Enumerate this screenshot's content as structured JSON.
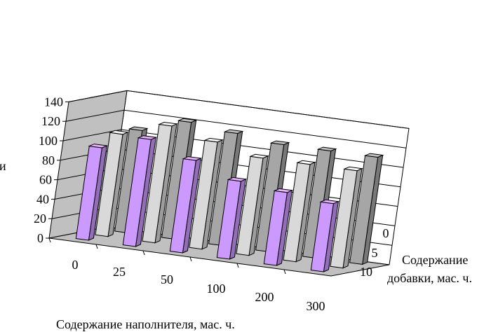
{
  "chart_data": {
    "type": "bar",
    "subtype": "3d-clustered-columns",
    "title": "",
    "xlabel": "Содержание наполнителя, мас. ч.",
    "zlabel_lines": [
      "Содержание",
      "добавки, мас. ч."
    ],
    "ylabel_fragment": "и",
    "ylim": [
      0,
      140
    ],
    "yticks": [
      "0",
      "20",
      "40",
      "60",
      "80",
      "100",
      "120",
      "140"
    ],
    "categories": [
      "0",
      "25",
      "50",
      "100",
      "200",
      "300"
    ],
    "depth_categories": [
      "0",
      "5",
      "10"
    ],
    "grid": true,
    "legend": "none",
    "series": [
      {
        "depth": "10",
        "color": "#cc99ff",
        "values": [
          95,
          110,
          95,
          80,
          75,
          70
        ]
      },
      {
        "depth": "5",
        "color": "#d9d9d9",
        "values": [
          105,
          120,
          110,
          100,
          100,
          100
        ]
      },
      {
        "depth": "0",
        "color": "#a6a6a6",
        "values": [
          105,
          120,
          115,
          110,
          110,
          110
        ]
      }
    ]
  }
}
